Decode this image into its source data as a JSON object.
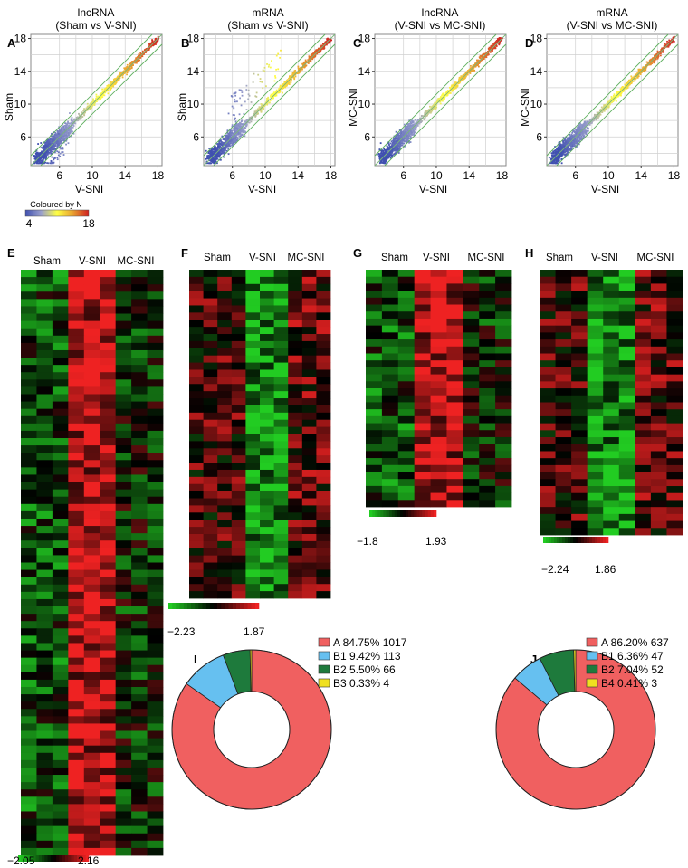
{
  "figure": {
    "scatter_panels": [
      {
        "label": "A",
        "title": [
          "lncRNA",
          "(Sham vs V-SNI)"
        ],
        "xlabel": "V-SNI",
        "ylabel": "Sham",
        "xticks": [
          "6",
          "10",
          "14",
          "18"
        ],
        "yticks": [
          "6",
          "10",
          "14",
          "18"
        ]
      },
      {
        "label": "B",
        "title": [
          "mRNA",
          "(Sham vs V-SNI)"
        ],
        "xlabel": "V-SNI",
        "ylabel": "Sham",
        "xticks": [
          "6",
          "10",
          "14",
          "18"
        ],
        "yticks": [
          "6",
          "10",
          "14",
          "18"
        ]
      },
      {
        "label": "C",
        "title": [
          "lncRNA",
          "(V-SNI vs MC-SNI)"
        ],
        "xlabel": "V-SNI",
        "ylabel": "MC-SNI",
        "xticks": [
          "6",
          "10",
          "14",
          "18"
        ],
        "yticks": [
          "6",
          "10",
          "14",
          "18"
        ]
      },
      {
        "label": "D",
        "title": [
          "mRNA",
          "(V-SNI vs MC-SNI)"
        ],
        "xlabel": "V-SNI",
        "ylabel": "MC-SNI",
        "xticks": [
          "6",
          "10",
          "14",
          "18"
        ],
        "yticks": [
          "6",
          "10",
          "14",
          "18"
        ]
      }
    ],
    "density_legend": {
      "title": "Coloured by N",
      "min": "4",
      "max": "18",
      "colors": [
        "#4050b0",
        "#9aa0cc",
        "#ffff44",
        "#e8a030",
        "#d02020"
      ]
    },
    "heatmap_panels": [
      {
        "label": "E",
        "groups": [
          "Sham",
          "V-SNI",
          "MC-SNI"
        ],
        "scale_min": "−2.05",
        "scale_max": "2.16",
        "pattern": "up"
      },
      {
        "label": "F",
        "groups": [
          "Sham",
          "V-SNI",
          "MC-SNI"
        ],
        "scale_min": "−2.23",
        "scale_max": "1.87",
        "pattern": "down"
      },
      {
        "label": "G",
        "groups": [
          "Sham",
          "V-SNI",
          "MC-SNI"
        ],
        "scale_min": "−1.8",
        "scale_max": "1.93",
        "pattern": "up"
      },
      {
        "label": "H",
        "groups": [
          "Sham",
          "V-SNI",
          "MC-SNI"
        ],
        "scale_min": "−2.24",
        "scale_max": "1.86",
        "pattern": "down"
      }
    ],
    "heatmap_colors": {
      "low": "#22cc22",
      "mid": "#000000",
      "high": "#ee2222"
    }
  },
  "chart_data": [
    {
      "type": "pie",
      "label": "I",
      "style": "donut",
      "categories": [
        "A",
        "B1",
        "B2",
        "B3"
      ],
      "percent": [
        84.75,
        9.42,
        5.5,
        0.33
      ],
      "counts": [
        1017,
        113,
        66,
        4
      ],
      "legend": [
        "A 84.75% 1017",
        "B1 9.42% 113",
        "B2 5.50% 66",
        "B3 0.33% 4"
      ],
      "colors": [
        "#f06060",
        "#66c0f0",
        "#1e7a3c",
        "#f0e020"
      ]
    },
    {
      "type": "pie",
      "label": "J",
      "style": "donut",
      "categories": [
        "A",
        "B1",
        "B2",
        "B4"
      ],
      "percent": [
        86.2,
        6.36,
        7.04,
        0.41
      ],
      "counts": [
        637,
        47,
        52,
        3
      ],
      "legend": [
        "A  86.20% 637",
        "B1 6.36% 47",
        "B2 7.04% 52",
        "B4 0.41% 3"
      ],
      "colors": [
        "#f06060",
        "#66c0f0",
        "#1e7a3c",
        "#f0e020"
      ]
    }
  ]
}
